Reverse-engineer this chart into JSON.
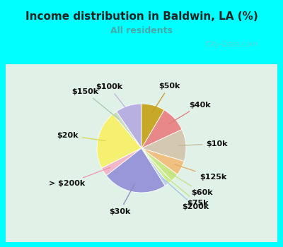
{
  "title": "Income distribution in Baldwin, LA (%)",
  "subtitle": "All residents",
  "watermark": "© City-Data.com",
  "labels": [
    "$100k",
    "$150k",
    "$20k",
    "> $200k",
    "$30k",
    "$200k",
    "$75k",
    "$60k",
    "$125k",
    "$10k",
    "$40k",
    "$50k"
  ],
  "sizes": [
    9,
    1.5,
    20,
    3,
    22,
    1.2,
    1.5,
    3,
    5,
    11,
    9,
    8
  ],
  "colors": [
    "#b8b0e0",
    "#c8ddc0",
    "#f5f070",
    "#f0b8c8",
    "#9898d8",
    "#b8d0ee",
    "#d0ec98",
    "#c8e888",
    "#f0c080",
    "#d4c8b0",
    "#e88888",
    "#c8a828"
  ],
  "background_top": "#00ffff",
  "title_color": "#222222",
  "subtitle_color": "#44aaaa",
  "label_line_colors": [
    "#c0b0e0",
    "#a8c8a8",
    "#d8d850",
    "#f090b0",
    "#8888c0",
    "#a0c0e0",
    "#c0e080",
    "#c0e080",
    "#e0a860",
    "#c0b898",
    "#e07878",
    "#c89820"
  ],
  "startangle": 90,
  "label_fontsize": 8
}
